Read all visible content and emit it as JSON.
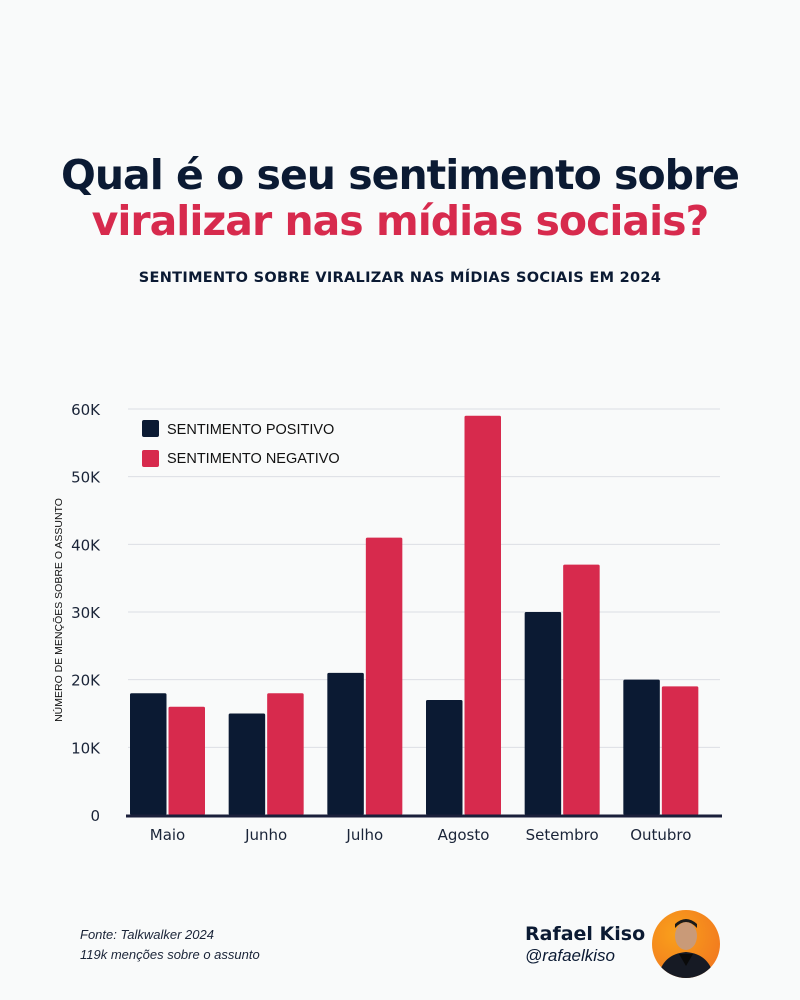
{
  "header": {
    "title_line1": "Qual é o seu sentimento sobre",
    "title_line2": "viralizar nas mídias sociais?",
    "subtitle": "SENTIMENTO SOBRE VIRALIZAR NAS MÍDIAS SOCIAIS EM 2024"
  },
  "chart_data": {
    "type": "bar",
    "title": "SENTIMENTO SOBRE VIRALIZAR NAS MÍDIAS SOCIAIS EM 2024",
    "xlabel": "",
    "ylabel": "NÚMERO DE MENÇÕES SOBRE O ASSUNTO",
    "categories": [
      "Maio",
      "Junho",
      "Julho",
      "Agosto",
      "Setembro",
      "Outubro"
    ],
    "series": [
      {
        "name": "SENTIMENTO POSITIVO",
        "color": "#0b1a33",
        "values": [
          18000,
          15000,
          21000,
          17000,
          30000,
          20000
        ]
      },
      {
        "name": "SENTIMENTO NEGATIVO",
        "color": "#d72a4d",
        "values": [
          16000,
          18000,
          41000,
          59000,
          37000,
          19000
        ]
      }
    ],
    "ylim": [
      0,
      60000
    ],
    "yticks": [
      0,
      10000,
      20000,
      30000,
      40000,
      50000,
      60000
    ],
    "ytick_labels": [
      "0",
      "10K",
      "20K",
      "30K",
      "40K",
      "50K",
      "60K"
    ],
    "grid": true,
    "legend": "top-left"
  },
  "footer": {
    "source": "Fonte: Talkwalker 2024",
    "mentions": "119k menções sobre o assunto",
    "author_name": "Rafael Kiso",
    "author_handle": "@rafaelkiso"
  }
}
